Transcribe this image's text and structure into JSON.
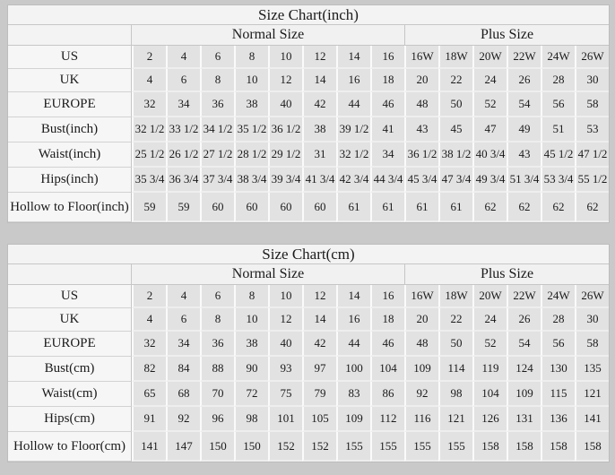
{
  "page": {
    "background": "#c9c9c9"
  },
  "colors": {
    "page_background": "#c9c9c9",
    "label_cell_background": "#f6f6f6",
    "data_cell_background": "#e2e2e2",
    "header_background": "#f1f1f1",
    "grid_line": "#c6c6c6",
    "text": "#1b1b1b"
  },
  "chart_data": [
    {
      "type": "table",
      "title": "Size Chart(inch)",
      "section_headers": {
        "normal": "Normal Size",
        "plus": "Plus Size"
      },
      "normal_col_count": 8,
      "plus_col_count": 6,
      "rows": [
        {
          "label": "US",
          "values": [
            "2",
            "4",
            "6",
            "8",
            "10",
            "12",
            "14",
            "16",
            "16W",
            "18W",
            "20W",
            "22W",
            "24W",
            "26W"
          ]
        },
        {
          "label": "UK",
          "values": [
            "4",
            "6",
            "8",
            "10",
            "12",
            "14",
            "16",
            "18",
            "20",
            "22",
            "24",
            "26",
            "28",
            "30"
          ]
        },
        {
          "label": "EUROPE",
          "values": [
            "32",
            "34",
            "36",
            "38",
            "40",
            "42",
            "44",
            "46",
            "48",
            "50",
            "52",
            "54",
            "56",
            "58"
          ]
        },
        {
          "label": "Bust(inch)",
          "values": [
            "32 1/2",
            "33 1/2",
            "34 1/2",
            "35 1/2",
            "36 1/2",
            "38",
            "39 1/2",
            "41",
            "43",
            "45",
            "47",
            "49",
            "51",
            "53"
          ]
        },
        {
          "label": "Waist(inch)",
          "values": [
            "25 1/2",
            "26 1/2",
            "27 1/2",
            "28 1/2",
            "29 1/2",
            "31",
            "32 1/2",
            "34",
            "36 1/2",
            "38 1/2",
            "40 3/4",
            "43",
            "45 1/2",
            "47 1/2"
          ]
        },
        {
          "label": "Hips(inch)",
          "values": [
            "35 3/4",
            "36 3/4",
            "37 3/4",
            "38 3/4",
            "39 3/4",
            "41 3/4",
            "42 3/4",
            "44 3/4",
            "45 3/4",
            "47 3/4",
            "49 3/4",
            "51 3/4",
            "53 3/4",
            "55 1/2"
          ]
        },
        {
          "label": "Hollow to Floor(inch)",
          "values": [
            "59",
            "59",
            "60",
            "60",
            "60",
            "60",
            "61",
            "61",
            "61",
            "61",
            "62",
            "62",
            "62",
            "62"
          ]
        }
      ]
    },
    {
      "type": "table",
      "title": "Size Chart(cm)",
      "section_headers": {
        "normal": "Normal Size",
        "plus": "Plus Size"
      },
      "normal_col_count": 8,
      "plus_col_count": 6,
      "rows": [
        {
          "label": "US",
          "values": [
            "2",
            "4",
            "6",
            "8",
            "10",
            "12",
            "14",
            "16",
            "16W",
            "18W",
            "20W",
            "22W",
            "24W",
            "26W"
          ]
        },
        {
          "label": "UK",
          "values": [
            "4",
            "6",
            "8",
            "10",
            "12",
            "14",
            "16",
            "18",
            "20",
            "22",
            "24",
            "26",
            "28",
            "30"
          ]
        },
        {
          "label": "EUROPE",
          "values": [
            "32",
            "34",
            "36",
            "38",
            "40",
            "42",
            "44",
            "46",
            "48",
            "50",
            "52",
            "54",
            "56",
            "58"
          ]
        },
        {
          "label": "Bust(cm)",
          "values": [
            "82",
            "84",
            "88",
            "90",
            "93",
            "97",
            "100",
            "104",
            "109",
            "114",
            "119",
            "124",
            "130",
            "135"
          ]
        },
        {
          "label": "Waist(cm)",
          "values": [
            "65",
            "68",
            "70",
            "72",
            "75",
            "79",
            "83",
            "86",
            "92",
            "98",
            "104",
            "109",
            "115",
            "121"
          ]
        },
        {
          "label": "Hips(cm)",
          "values": [
            "91",
            "92",
            "96",
            "98",
            "101",
            "105",
            "109",
            "112",
            "116",
            "121",
            "126",
            "131",
            "136",
            "141"
          ]
        },
        {
          "label": "Hollow to Floor(cm)",
          "values": [
            "141",
            "147",
            "150",
            "150",
            "152",
            "152",
            "155",
            "155",
            "155",
            "155",
            "158",
            "158",
            "158",
            "158"
          ]
        }
      ]
    }
  ]
}
